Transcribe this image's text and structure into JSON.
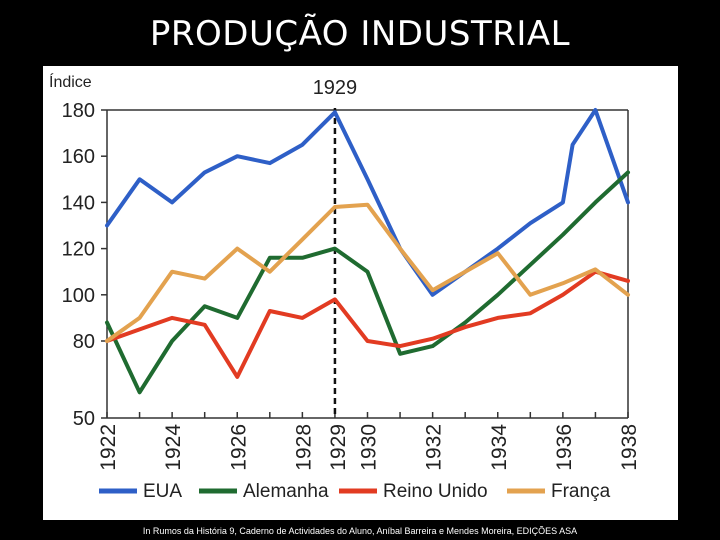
{
  "slide": {
    "title": "PRODUÇÃO INDUSTRIAL",
    "credit": "In Rumos da História 9, Caderno de Actividades do Aluno, Aníbal Barreira e Mendes Moreira, EDIÇÕES ASA"
  },
  "chart_data": {
    "type": "line",
    "ylabel": "Índice",
    "annotation": "1929",
    "annotation_x": 1929,
    "xlim": [
      1922,
      1938
    ],
    "x_ticks": [
      "1922",
      "1924",
      "1926",
      "1928",
      "1929",
      "1930",
      "1932",
      "1934",
      "1936",
      "1938"
    ],
    "y_ticks": [
      50,
      80,
      100,
      120,
      140,
      160,
      180
    ],
    "y_tick_labels": [
      "50",
      "80",
      "100",
      "120",
      "140",
      "160",
      "180"
    ],
    "ylim": [
      50,
      180
    ],
    "y_axis_break": true,
    "grid": false,
    "legend": "bottom",
    "series": [
      {
        "name": "EUA",
        "color": "#2e5fc7",
        "x": [
          1922,
          1923,
          1924,
          1925,
          1926,
          1927,
          1928,
          1929,
          1930,
          1931,
          1932,
          1933,
          1934,
          1935,
          1936,
          1936.3,
          1937,
          1938
        ],
        "values": [
          130,
          150,
          140,
          153,
          160,
          157,
          165,
          179,
          150,
          120,
          100,
          110,
          120,
          131,
          140,
          165,
          180,
          140
        ]
      },
      {
        "name": "Alemanha",
        "color": "#1f6b30",
        "x": [
          1922,
          1923,
          1924,
          1925,
          1926,
          1927,
          1928,
          1929,
          1930,
          1931,
          1932,
          1933,
          1934,
          1935,
          1936,
          1937,
          1938
        ],
        "values": [
          88,
          60,
          80,
          95,
          90,
          116,
          116,
          120,
          110,
          75,
          78,
          88,
          100,
          113,
          126,
          140,
          153
        ]
      },
      {
        "name": "Reino Unido",
        "color": "#e23b22",
        "x": [
          1922,
          1923,
          1924,
          1925,
          1926,
          1927,
          1928,
          1929,
          1930,
          1931,
          1932,
          1933,
          1934,
          1935,
          1936,
          1937,
          1938
        ],
        "values": [
          80,
          85,
          90,
          87,
          66,
          93,
          90,
          98,
          80,
          78,
          81,
          86,
          90,
          92,
          100,
          110,
          106
        ]
      },
      {
        "name": "França",
        "color": "#e3a24f",
        "x": [
          1922,
          1923,
          1924,
          1925,
          1926,
          1927,
          1928,
          1929,
          1930,
          1931,
          1932,
          1933,
          1934,
          1935,
          1936,
          1937,
          1938
        ],
        "values": [
          80,
          90,
          110,
          107,
          120,
          110,
          124,
          138,
          139,
          120,
          102,
          110,
          118,
          100,
          105,
          111,
          100
        ]
      }
    ]
  }
}
